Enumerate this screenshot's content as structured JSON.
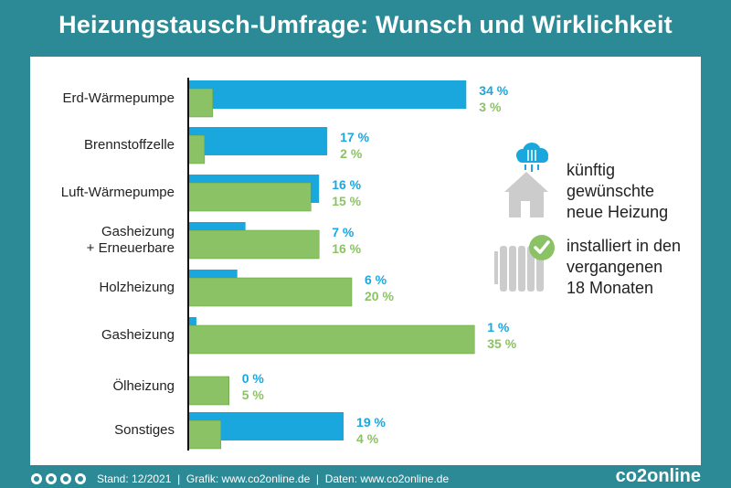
{
  "page": {
    "title": "Heizungstausch-Umfrage: Wunsch und Wirklichkeit"
  },
  "colors": {
    "background": "#2b8a96",
    "wish": "#1aa7de",
    "installed": "#8cc266",
    "axis": "#111111",
    "icon_gray": "#cccccc"
  },
  "chart_data": {
    "type": "bar",
    "orientation": "horizontal",
    "categories": [
      "Erd-Wärmepumpe",
      "Brennstoffzelle",
      "Luft-Wärmepumpe",
      "Gasheizung + Erneuerbare",
      "Holzheizung",
      "Gasheizung",
      "Ölheizung",
      "Sonstiges"
    ],
    "category_lines": [
      [
        "Erd-Wärmepumpe"
      ],
      [
        "Brennstoffzelle"
      ],
      [
        "Luft-Wärmepumpe"
      ],
      [
        "Gasheizung",
        "+ Erneuerbare"
      ],
      [
        "Holzheizung"
      ],
      [
        "Gasheizung"
      ],
      [
        "Ölheizung"
      ],
      [
        "Sonstiges"
      ]
    ],
    "series": [
      {
        "name": "künftig gewünschte neue Heizung",
        "values": [
          34,
          17,
          16,
          7,
          6,
          1,
          0,
          19
        ],
        "labels": [
          "34 %",
          "17 %",
          "16 %",
          "7 %",
          "6 %",
          "1 %",
          "0 %",
          "19 %"
        ]
      },
      {
        "name": "installiert in den vergangenen 18 Monaten",
        "values": [
          3,
          2,
          15,
          16,
          20,
          35,
          5,
          4
        ],
        "labels": [
          "3 %",
          "2 %",
          "15 %",
          "16 %",
          "20 %",
          "35 %",
          "5 %",
          "4 %"
        ]
      }
    ],
    "xlim": [
      0,
      36
    ],
    "grid": false,
    "legend": "right"
  },
  "legend": {
    "wish_lines": [
      "künftig",
      "gewünschte",
      "neue Heizung"
    ],
    "installed_lines": [
      "installiert in den",
      "vergangenen",
      "18 Monaten"
    ],
    "wish_icon": "house-cloud-icon",
    "installed_icon": "radiator-check-icon"
  },
  "footer": {
    "icons": [
      "cc-icon",
      "by-icon",
      "nc-icon",
      "nd-icon"
    ],
    "text": "Stand: 12/2021  |  Grafik: www.co2online.de  |  Daten: www.co2online.de",
    "brand": "co2online"
  }
}
